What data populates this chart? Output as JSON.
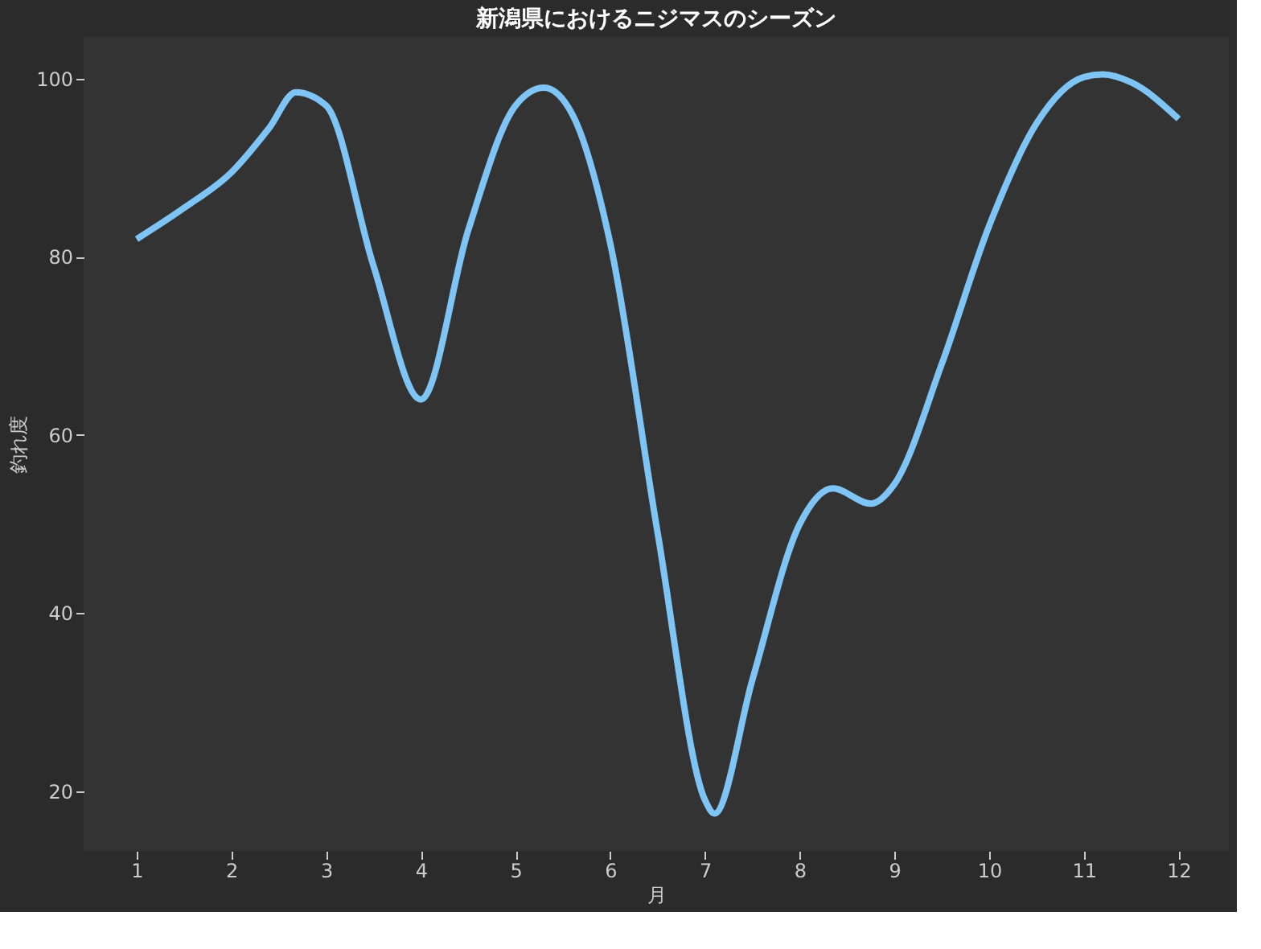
{
  "chart_data": {
    "type": "line",
    "title": "新潟県におけるニジマスのシーズン",
    "xlabel": "月",
    "ylabel": "釣れ度",
    "x": [
      1,
      1.5,
      2,
      2.4,
      2.68,
      3,
      3.5,
      4,
      4.5,
      5,
      5.3,
      5.6,
      6,
      6.5,
      7,
      7.1,
      7.5,
      8,
      8.35,
      8.75,
      9,
      9.5,
      10,
      10.5,
      11,
      11.2,
      11.5,
      12
    ],
    "series": [
      {
        "color": "#7ec4f5",
        "values": [
          82,
          85.5,
          89.5,
          94.5,
          98.5,
          97,
          79,
          64,
          83,
          97,
          99,
          96,
          81.5,
          49,
          19,
          17.5,
          32.5,
          50,
          54,
          52.3,
          54.5,
          68,
          83.5,
          95,
          100.2,
          100.5,
          99.6,
          95.5
        ]
      }
    ],
    "xlim": [
      0.44,
      12.53
    ],
    "xticks": [
      1,
      2,
      3,
      4,
      5,
      6,
      7,
      8,
      9,
      10,
      11,
      12
    ],
    "ylim": [
      13.3,
      104.7
    ],
    "yticks": [
      20,
      40,
      60,
      80,
      100
    ],
    "grid": false,
    "legend": false
  }
}
